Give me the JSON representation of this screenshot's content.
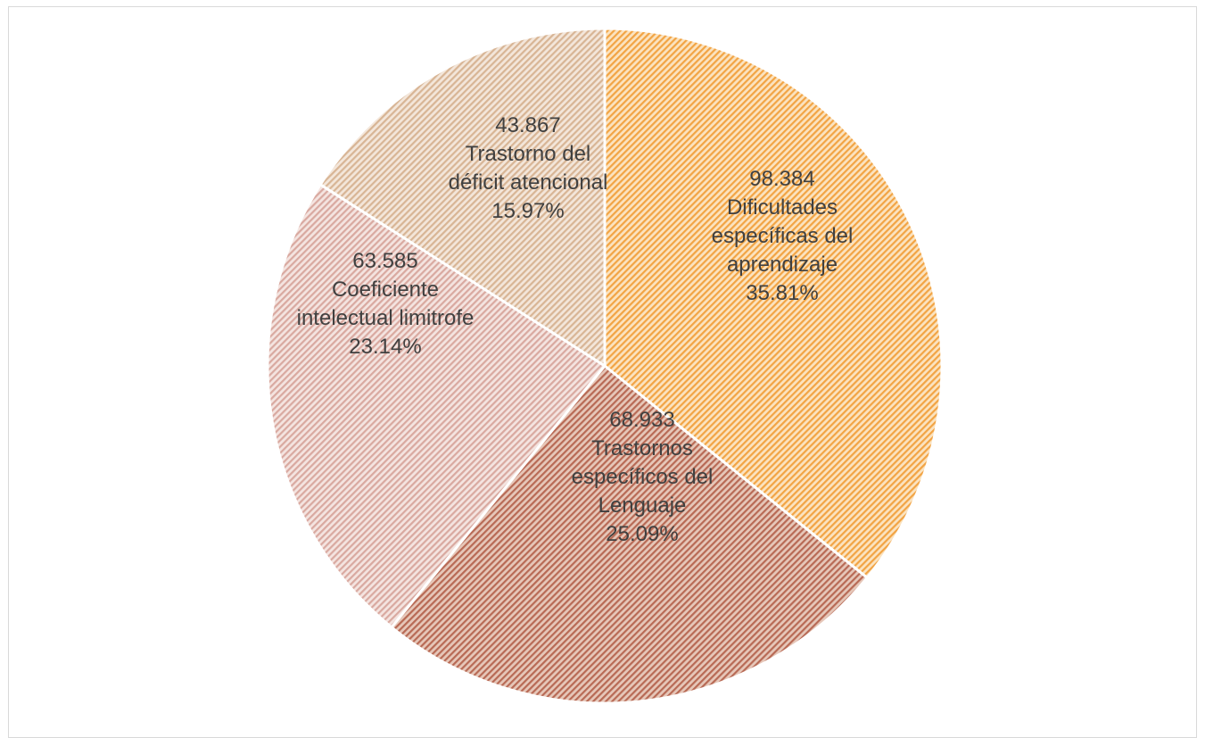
{
  "chart_data": {
    "type": "pie",
    "title": "",
    "slices": [
      {
        "value_label": "98.384",
        "name": "Dificultades específicas del aprendizaje",
        "label_lines": [
          "Dificultades",
          "específicas del",
          "aprendizaje"
        ],
        "percent_label": "35.81%",
        "percent": 35.81,
        "color": "#f2a444",
        "bg": "#fbe3c0"
      },
      {
        "value_label": "68.933",
        "name": "Trastornos específicos del Lenguaje",
        "label_lines": [
          "Trastornos",
          "específicos del",
          "Lenguaje"
        ],
        "percent_label": "25.09%",
        "percent": 25.09,
        "color": "#b86a55",
        "bg": "#e6c7b9"
      },
      {
        "value_label": "63.585",
        "name": "Coeficiente intelectual limitrofe",
        "label_lines": [
          "Coeficiente",
          "intelectual limitrofe"
        ],
        "percent_label": "23.14%",
        "percent": 23.14,
        "color": "#d9a9a0",
        "bg": "#f4e4e0"
      },
      {
        "value_label": "43.867",
        "name": "Trastorno del déficit atencional",
        "label_lines": [
          "Trastorno del",
          "déficit atencional"
        ],
        "percent_label": "15.97%",
        "percent": 15.97,
        "color": "#d8b595",
        "bg": "#f3e6da"
      }
    ],
    "start_angle_deg": 0,
    "direction": "clockwise",
    "legend": "none"
  }
}
